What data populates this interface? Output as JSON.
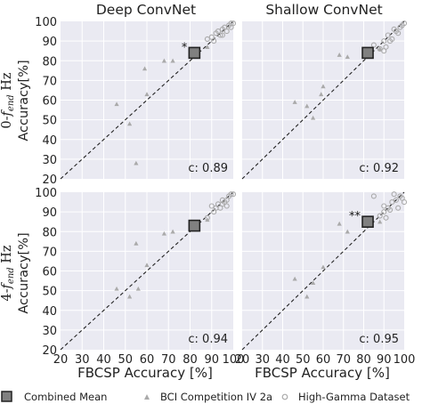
{
  "figure": {
    "column_titles": [
      "Deep ConvNet",
      "Shallow ConvNet"
    ],
    "row_label_prefix": [
      "0-",
      "4-"
    ],
    "row_label_f": "f",
    "row_label_sub": "end",
    "row_label_unit": " Hz",
    "ylabel": "Accuracy[%]",
    "xlabel": "FBCSP Accuracy [%]",
    "legend": {
      "combined": "Combined Mean",
      "bci": "BCI Competition IV 2a",
      "hg": "High-Gamma Dataset"
    },
    "colors": {
      "panel_bg": "#eaeaf2",
      "grid": "#ffffff",
      "marker_gray": "#aaaaaa",
      "mean_fill": "#808080",
      "text": "#222222"
    }
  },
  "chart_data": [
    {
      "type": "scatter",
      "title": "Deep ConvNet",
      "row": "0-f_end Hz",
      "xlabel": "",
      "ylabel": "Accuracy[%]",
      "xlim": [
        20,
        100
      ],
      "ylim": [
        20,
        100
      ],
      "ticks": [
        20,
        30,
        40,
        50,
        60,
        70,
        80,
        90,
        100
      ],
      "correlation_label": "c: 0.89",
      "significance": "*",
      "mean": [
        82,
        84
      ],
      "series": [
        {
          "name": "BCI Competition IV 2a",
          "marker": "triangle",
          "points": [
            [
              46,
              58
            ],
            [
              52,
              48
            ],
            [
              55,
              28
            ],
            [
              59,
              76
            ],
            [
              60,
              63
            ],
            [
              68,
              80
            ],
            [
              72,
              80
            ],
            [
              82,
              84
            ],
            [
              88,
              87
            ]
          ]
        },
        {
          "name": "High-Gamma Dataset",
          "marker": "circle",
          "points": [
            [
              88,
              91
            ],
            [
              90,
              92
            ],
            [
              91,
              90
            ],
            [
              92,
              94
            ],
            [
              93,
              95
            ],
            [
              94,
              93
            ],
            [
              95,
              96
            ],
            [
              96,
              97
            ],
            [
              97,
              95
            ],
            [
              98,
              98
            ],
            [
              99,
              99
            ],
            [
              99,
              97
            ],
            [
              100,
              99
            ],
            [
              95,
              93
            ]
          ]
        }
      ]
    },
    {
      "type": "scatter",
      "title": "Shallow ConvNet",
      "row": "0-f_end Hz",
      "xlabel": "",
      "ylabel": "",
      "xlim": [
        20,
        100
      ],
      "ylim": [
        20,
        100
      ],
      "ticks": [
        20,
        30,
        40,
        50,
        60,
        70,
        80,
        90,
        100
      ],
      "correlation_label": "c: 0.92",
      "significance": "",
      "mean": [
        82,
        84
      ],
      "series": [
        {
          "name": "BCI Competition IV 2a",
          "marker": "triangle",
          "points": [
            [
              46,
              59
            ],
            [
              52,
              57
            ],
            [
              55,
              51
            ],
            [
              59,
              63
            ],
            [
              60,
              67
            ],
            [
              68,
              83
            ],
            [
              72,
              82
            ],
            [
              82,
              84
            ],
            [
              88,
              86
            ]
          ]
        },
        {
          "name": "High-Gamma Dataset",
          "marker": "circle",
          "points": [
            [
              85,
              88
            ],
            [
              88,
              86
            ],
            [
              90,
              90
            ],
            [
              91,
              87
            ],
            [
              92,
              93
            ],
            [
              93,
              90
            ],
            [
              94,
              91
            ],
            [
              95,
              96
            ],
            [
              96,
              95
            ],
            [
              97,
              94
            ],
            [
              98,
              97
            ],
            [
              99,
              98
            ],
            [
              100,
              99
            ],
            [
              90,
              85
            ]
          ]
        }
      ]
    },
    {
      "type": "scatter",
      "title": "",
      "row": "4-f_end Hz",
      "xlabel": "FBCSP Accuracy [%]",
      "ylabel": "Accuracy[%]",
      "xlim": [
        20,
        100
      ],
      "ylim": [
        20,
        100
      ],
      "ticks": [
        20,
        30,
        40,
        50,
        60,
        70,
        80,
        90,
        100
      ],
      "correlation_label": "c: 0.94",
      "significance": "",
      "mean": [
        82,
        83
      ],
      "series": [
        {
          "name": "BCI Competition IV 2a",
          "marker": "triangle",
          "points": [
            [
              46,
              51
            ],
            [
              52,
              47
            ],
            [
              55,
              74
            ],
            [
              56,
              51
            ],
            [
              60,
              63
            ],
            [
              68,
              79
            ],
            [
              72,
              80
            ],
            [
              82,
              84
            ],
            [
              88,
              86
            ]
          ]
        },
        {
          "name": "High-Gamma Dataset",
          "marker": "circle",
          "points": [
            [
              88,
              87
            ],
            [
              90,
              93
            ],
            [
              91,
              90
            ],
            [
              92,
              92
            ],
            [
              93,
              94
            ],
            [
              94,
              92
            ],
            [
              95,
              96
            ],
            [
              96,
              95
            ],
            [
              97,
              93
            ],
            [
              98,
              98
            ],
            [
              99,
              99
            ],
            [
              100,
              99
            ],
            [
              95,
              94
            ],
            [
              97,
              96
            ]
          ]
        }
      ]
    },
    {
      "type": "scatter",
      "title": "",
      "row": "4-f_end Hz",
      "xlabel": "FBCSP Accuracy [%]",
      "ylabel": "",
      "xlim": [
        20,
        100
      ],
      "ylim": [
        20,
        100
      ],
      "ticks": [
        20,
        30,
        40,
        50,
        60,
        70,
        80,
        90,
        100
      ],
      "correlation_label": "c: 0.95",
      "significance": "**",
      "mean": [
        82,
        85
      ],
      "series": [
        {
          "name": "BCI Competition IV 2a",
          "marker": "triangle",
          "points": [
            [
              46,
              56
            ],
            [
              52,
              47
            ],
            [
              55,
              54
            ],
            [
              60,
              62
            ],
            [
              68,
              84
            ],
            [
              72,
              80
            ],
            [
              82,
              85
            ],
            [
              88,
              85
            ]
          ]
        },
        {
          "name": "High-Gamma Dataset",
          "marker": "circle",
          "points": [
            [
              85,
              98
            ],
            [
              88,
              88
            ],
            [
              90,
              93
            ],
            [
              91,
              87
            ],
            [
              92,
              92
            ],
            [
              93,
              91
            ],
            [
              94,
              95
            ],
            [
              95,
              99
            ],
            [
              96,
              96
            ],
            [
              97,
              92
            ],
            [
              98,
              98
            ],
            [
              99,
              97
            ],
            [
              100,
              95
            ],
            [
              90,
              90
            ]
          ]
        }
      ]
    }
  ]
}
